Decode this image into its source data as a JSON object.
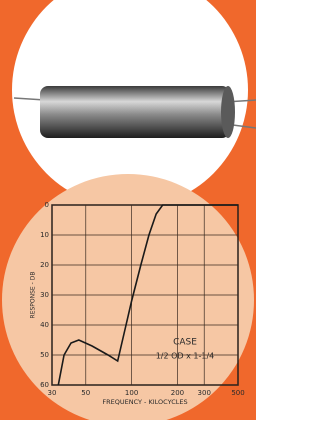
{
  "chart_data": {
    "type": "line",
    "x_label": "FREQUENCY - KILOCYCLES",
    "y_label": "RESPONSE - DB",
    "annotations": [
      "CASE",
      "1/2 OD x 1-1/4"
    ],
    "x": [
      33,
      36,
      40,
      45,
      55,
      70,
      81,
      90,
      100,
      115,
      130,
      145,
      160,
      300,
      500
    ],
    "series": [
      {
        "color": "#1a1a1a",
        "values": [
          60,
          50,
          46,
          45,
          47,
          50,
          52,
          42,
          32,
          20,
          10,
          3,
          0,
          0,
          0
        ]
      }
    ],
    "xscale": "log",
    "xlim": [
      30,
      500
    ],
    "xticks": [
      30,
      50,
      100,
      200,
      300,
      500
    ],
    "ylim": [
      60,
      0
    ],
    "yticks": [
      0,
      10,
      20,
      30,
      40,
      50,
      60
    ],
    "grid": true
  }
}
